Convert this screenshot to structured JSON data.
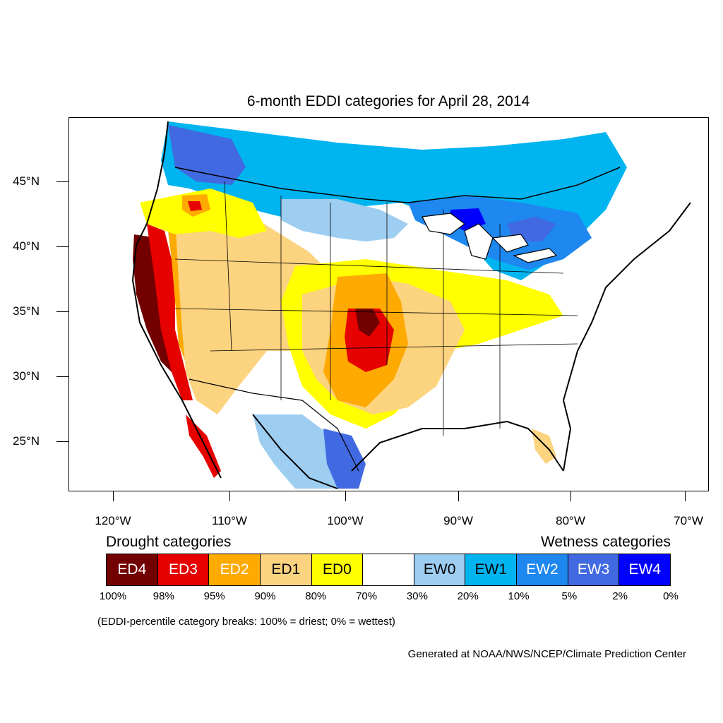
{
  "title": "6-month EDDI categories for April 28, 2014",
  "lat_labels": [
    "45°N",
    "40°N",
    "35°N",
    "30°N",
    "25°N"
  ],
  "lon_labels": [
    "120°W",
    "110°W",
    "100°W",
    "90°W",
    "80°W",
    "70°W"
  ],
  "legend": {
    "drought_heading": "Drought categories",
    "wetness_heading": "Wetness categories",
    "categories": [
      {
        "label": "ED4",
        "color": "#730000",
        "text_color": "#ffffff"
      },
      {
        "label": "ED3",
        "color": "#e60000",
        "text_color": "#ffffff"
      },
      {
        "label": "ED2",
        "color": "#ffaa00",
        "text_color": "#ffffff"
      },
      {
        "label": "ED1",
        "color": "#fcd37f",
        "text_color": "#000000"
      },
      {
        "label": "ED0",
        "color": "#ffff00",
        "text_color": "#000000"
      },
      {
        "label": "",
        "color": "#ffffff",
        "text_color": "#000000"
      },
      {
        "label": "EW0",
        "color": "#9dcdf0",
        "text_color": "#000000"
      },
      {
        "label": "EW1",
        "color": "#00b4f0",
        "text_color": "#000000"
      },
      {
        "label": "EW2",
        "color": "#1e87f0",
        "text_color": "#ffffff"
      },
      {
        "label": "EW3",
        "color": "#4169e1",
        "text_color": "#ffffff"
      },
      {
        "label": "EW4",
        "color": "#0000ff",
        "text_color": "#ffffff"
      }
    ],
    "percent_breaks": [
      "100%",
      "98%",
      "95%",
      "90%",
      "80%",
      "70%",
      "30%",
      "20%",
      "10%",
      "5%",
      "2%",
      "0%"
    ]
  },
  "note": "(EDDI-percentile category breaks: 100% = driest; 0% = wettest)",
  "credit": "Generated at NOAA/NWS/NCEP/Climate Prediction Center"
}
